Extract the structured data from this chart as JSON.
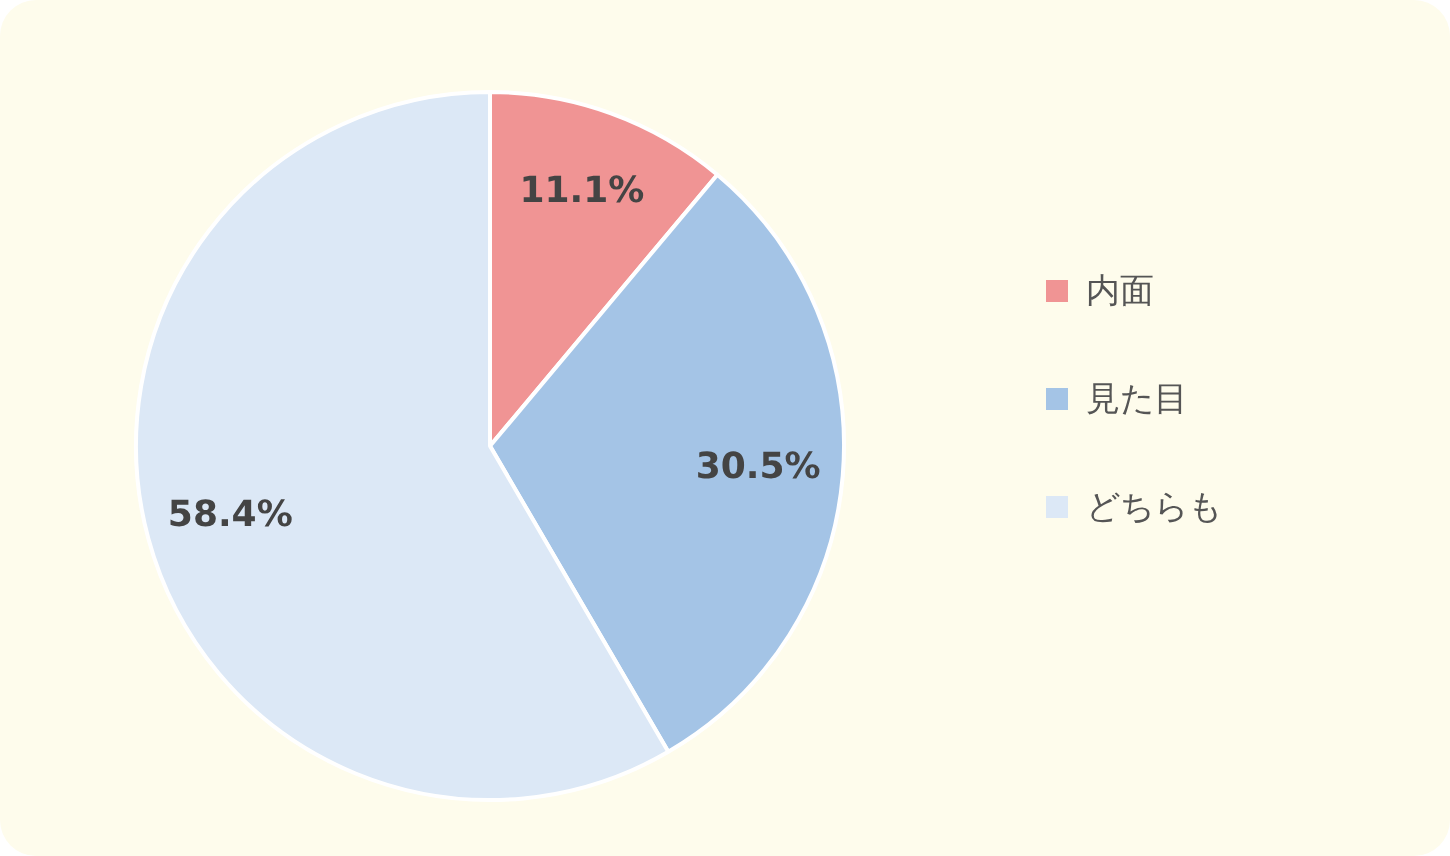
{
  "chart_data": {
    "type": "pie",
    "categories": [
      "内面",
      "見た目",
      "どちらも"
    ],
    "values": [
      11.1,
      30.5,
      58.4
    ],
    "colors": [
      "#f09494",
      "#a4c4e6",
      "#dce8f6"
    ],
    "value_labels": [
      "11.1%",
      "30.5%",
      "58.4%"
    ],
    "legend": "right"
  }
}
